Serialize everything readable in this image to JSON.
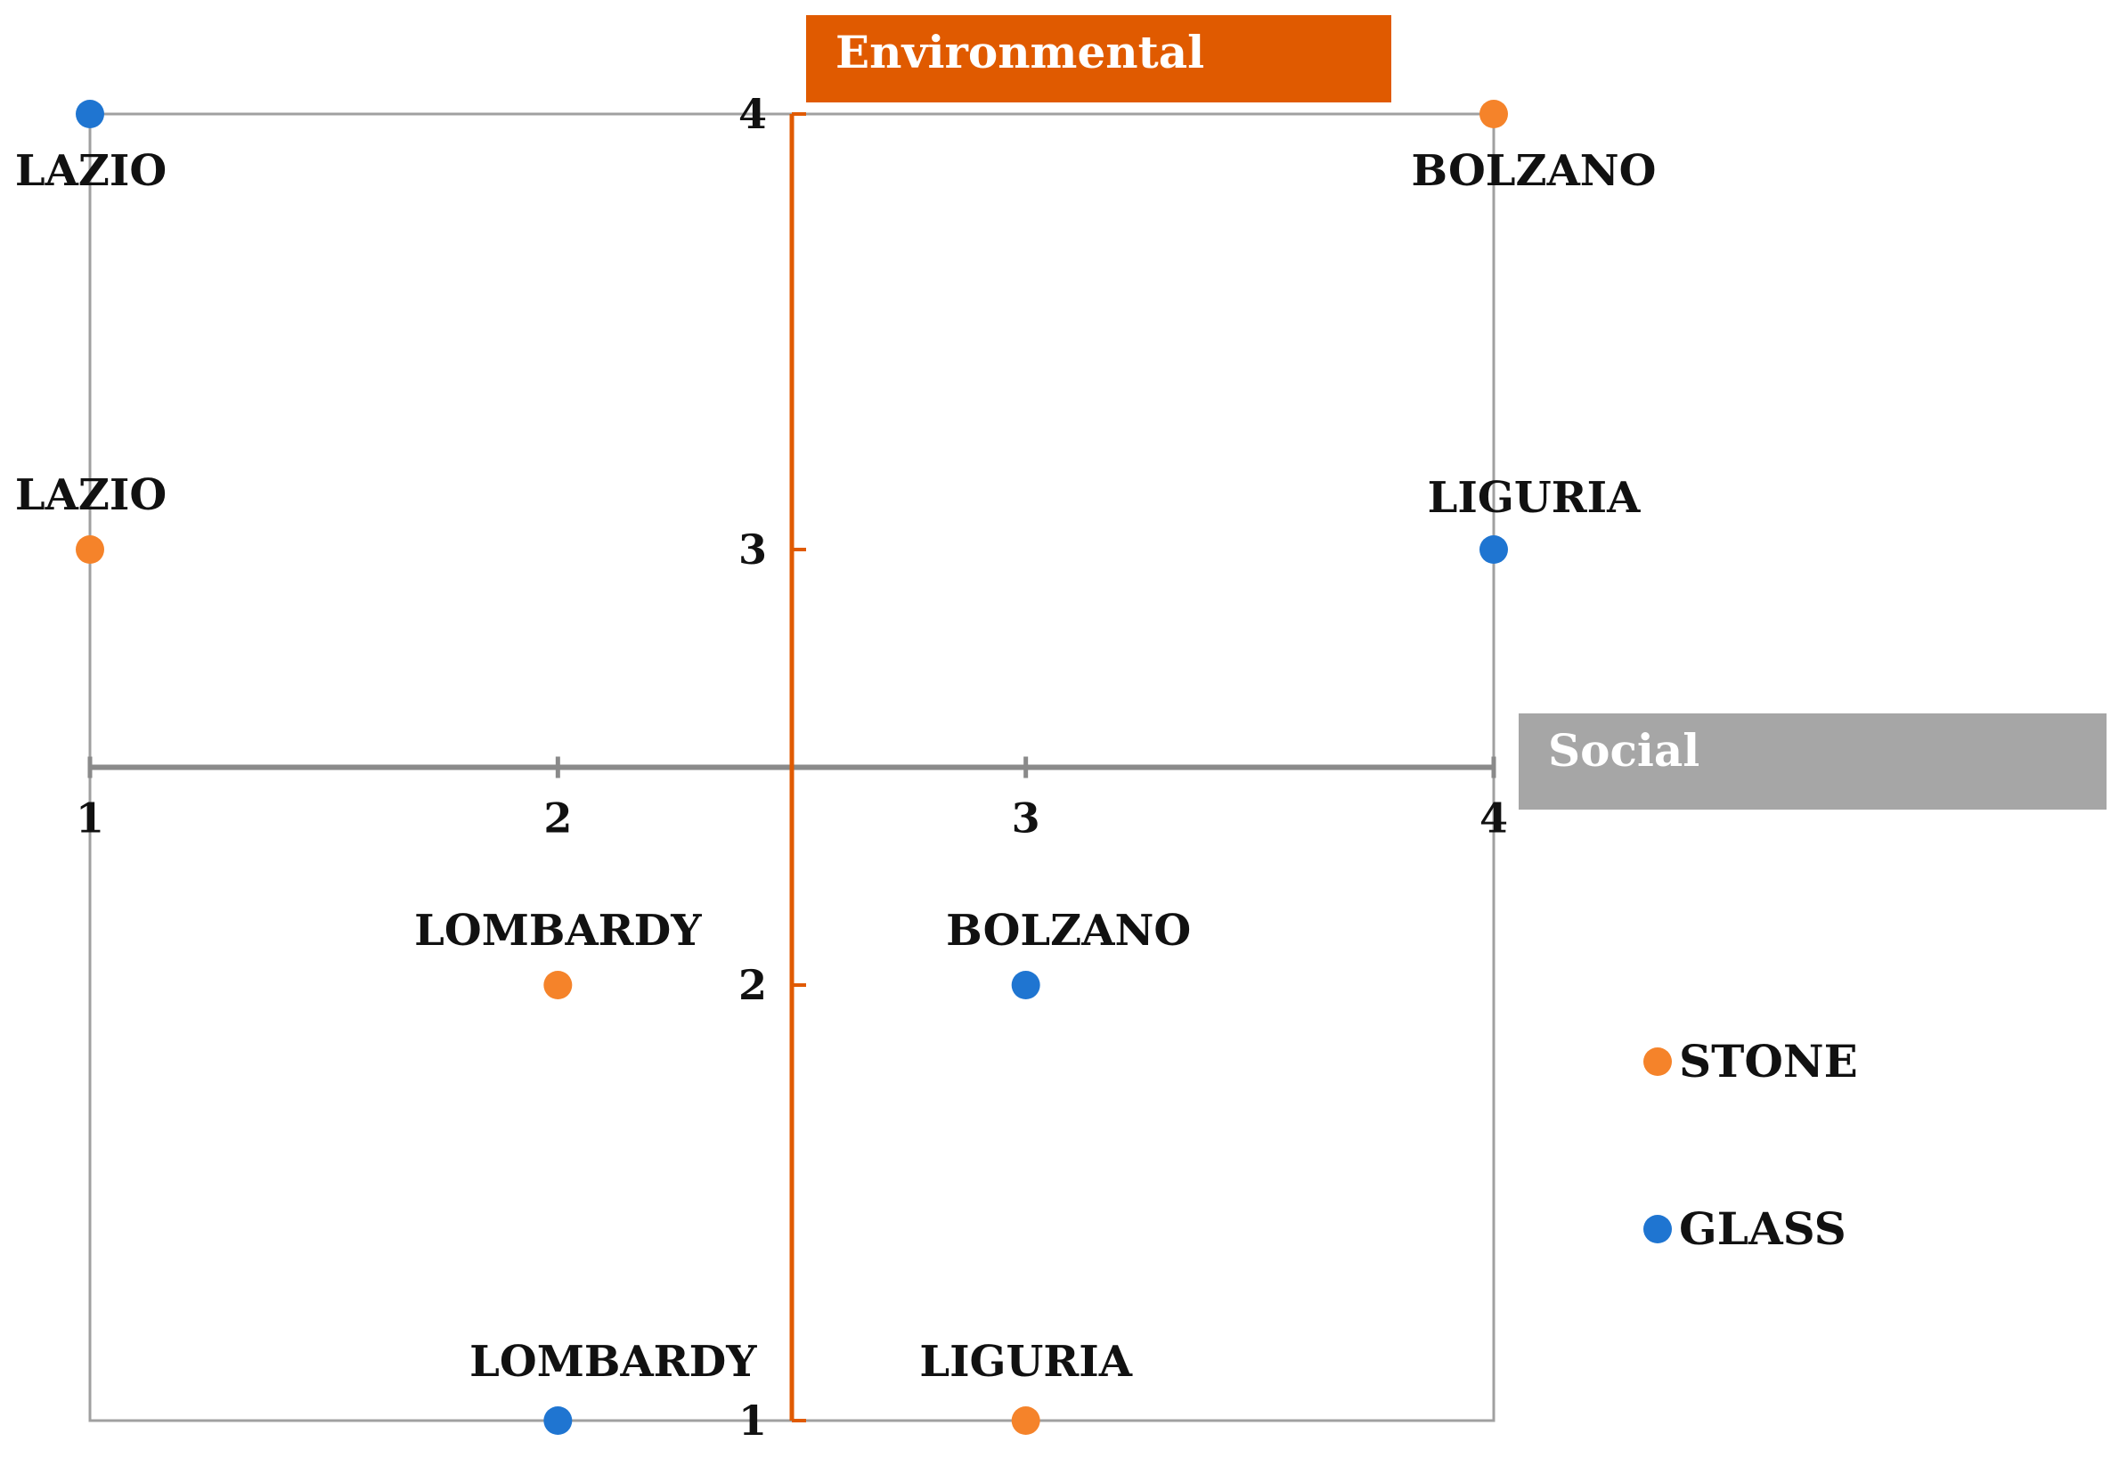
{
  "chart_data": {
    "type": "scatter",
    "x_axis_title": "Social",
    "y_axis_title": "Environmental",
    "xlim": [
      1,
      4
    ],
    "ylim": [
      1,
      4
    ],
    "x_ticks": [
      "1",
      "2",
      "3",
      "4"
    ],
    "y_ticks": [
      "1",
      "2",
      "3",
      "4"
    ],
    "axis_crossing": {
      "x": 2.5,
      "y": 2.5
    },
    "legend_position": "right",
    "series": [
      {
        "name": "STONE",
        "color": "#f5832a",
        "points": [
          {
            "label": "LAZIO",
            "x": 1,
            "y": 3
          },
          {
            "label": "BOLZANO",
            "x": 4,
            "y": 4
          },
          {
            "label": "LOMBARDY",
            "x": 2,
            "y": 2
          },
          {
            "label": "LIGURIA",
            "x": 3,
            "y": 1
          }
        ]
      },
      {
        "name": "GLASS",
        "color": "#1f75d1",
        "points": [
          {
            "label": "LAZIO",
            "x": 1,
            "y": 4
          },
          {
            "label": "LIGURIA",
            "x": 4,
            "y": 3
          },
          {
            "label": "BOLZANO",
            "x": 3,
            "y": 2
          },
          {
            "label": "LOMBARDY",
            "x": 2,
            "y": 1
          }
        ]
      }
    ],
    "colors": {
      "environmental_axis": "#e05a00",
      "social_axis": "#8a8a8a",
      "environmental_title_bg": "#e05a00",
      "social_title_bg": "#a6a6a6",
      "frame": "#a0a0a0"
    }
  }
}
